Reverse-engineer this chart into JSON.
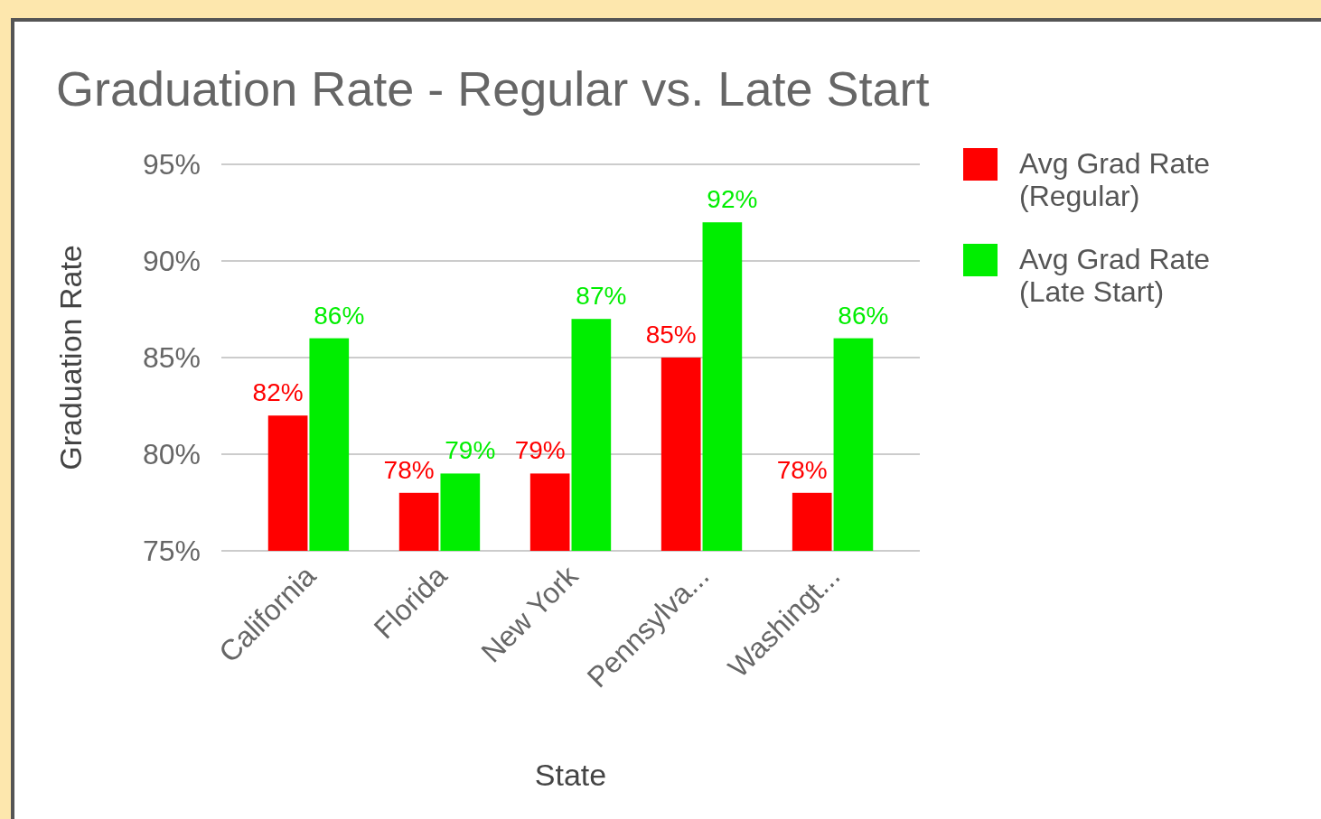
{
  "chart_data": {
    "type": "bar",
    "title": "Graduation Rate - Regular vs. Late Start",
    "xlabel": "State",
    "ylabel": "Graduation Rate",
    "categories": [
      "California",
      "Florida",
      "New York",
      "Pennsylva...",
      "Washingt..."
    ],
    "series": [
      {
        "name": "Avg Grad Rate (Regular)",
        "color": "#ff0000",
        "values": [
          82,
          78,
          79,
          85,
          78
        ],
        "value_labels": [
          "82%",
          "78%",
          "79%",
          "85%",
          "78%"
        ]
      },
      {
        "name": "Avg Grad Rate (Late Start)",
        "color": "#00ee00",
        "values": [
          86,
          79,
          87,
          92,
          86
        ],
        "value_labels": [
          "86%",
          "79%",
          "87%",
          "92%",
          "86%"
        ]
      }
    ],
    "ylim": [
      75,
      95
    ],
    "yticks": [
      {
        "value": 75,
        "label": "75%"
      },
      {
        "value": 80,
        "label": "80%"
      },
      {
        "value": 85,
        "label": "85%"
      },
      {
        "value": 90,
        "label": "90%"
      },
      {
        "value": 95,
        "label": "95%"
      }
    ],
    "grid": true,
    "legend": "top right"
  }
}
